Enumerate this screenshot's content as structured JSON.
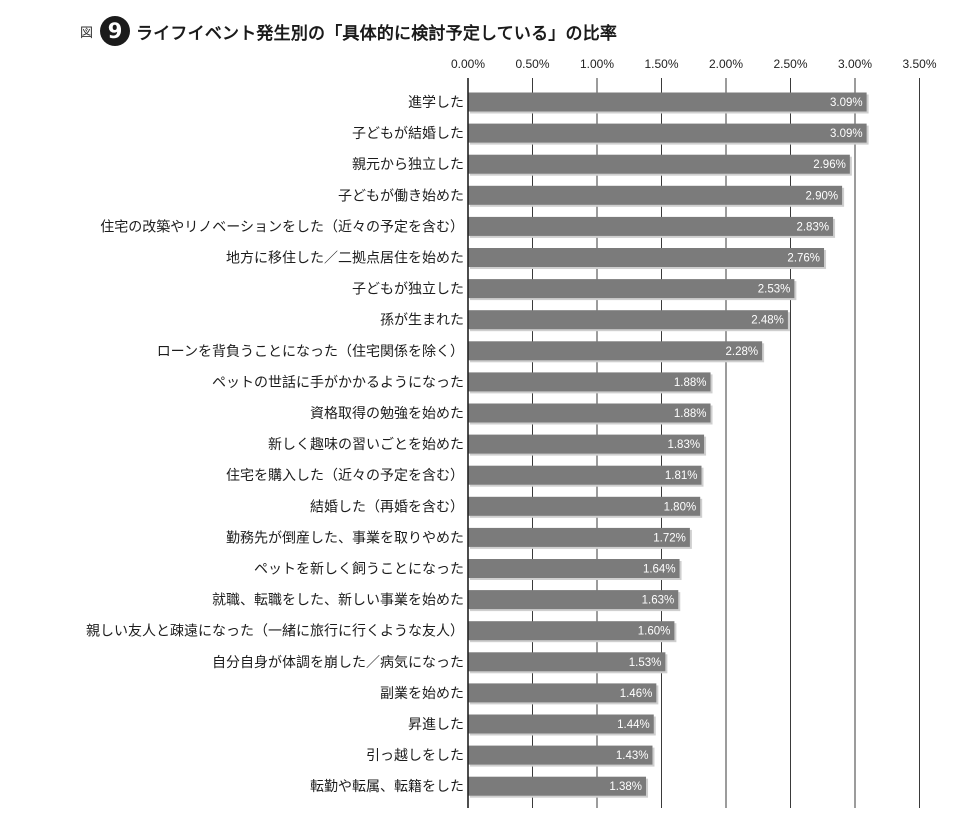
{
  "figure": {
    "prefix": "図",
    "number": "9",
    "title": "ライフイベント発生別の「具体的に検討予定している」の比率"
  },
  "colors": {
    "bar": "#7b7b7b",
    "bar_shadow": "#cfcfcf",
    "axis": "#222222",
    "grid": "#3a3a3a"
  },
  "chart_data": {
    "type": "bar",
    "orientation": "horizontal",
    "title": "ライフイベント発生別の「具体的に検討予定している」の比率",
    "xlabel": "",
    "ylabel": "",
    "xlim": [
      0,
      3.5
    ],
    "grid": true,
    "ticks": [
      "0.00%",
      "0.50%",
      "1.00%",
      "1.50%",
      "2.00%",
      "2.50%",
      "3.00%",
      "3.50%"
    ],
    "tick_values": [
      0,
      0.5,
      1.0,
      1.5,
      2.0,
      2.5,
      3.0,
      3.5
    ],
    "categories": [
      "進学した",
      "子どもが結婚した",
      "親元から独立した",
      "子どもが働き始めた",
      "住宅の改築やリノベーションをした（近々の予定を含む）",
      "地方に移住した／二拠点居住を始めた",
      "子どもが独立した",
      "孫が生まれた",
      "ローンを背負うことになった（住宅関係を除く）",
      "ペットの世話に手がかかるようになった",
      "資格取得の勉強を始めた",
      "新しく趣味の習いごとを始めた",
      "住宅を購入した（近々の予定を含む）",
      "結婚した（再婚を含む）",
      "勤務先が倒産した、事業を取りやめた",
      "ペットを新しく飼うことになった",
      "就職、転職をした、新しい事業を始めた",
      "親しい友人と疎遠になった（一緒に旅行に行くような友人）",
      "自分自身が体調を崩した／病気になった",
      "副業を始めた",
      "昇進した",
      "引っ越しをした",
      "転勤や転属、転籍をした"
    ],
    "values": [
      3.09,
      3.09,
      2.96,
      2.9,
      2.83,
      2.76,
      2.53,
      2.48,
      2.28,
      1.88,
      1.88,
      1.83,
      1.81,
      1.8,
      1.72,
      1.64,
      1.63,
      1.6,
      1.53,
      1.46,
      1.44,
      1.43,
      1.38
    ],
    "value_labels": [
      "3.09%",
      "3.09%",
      "2.96%",
      "2.90%",
      "2.83%",
      "2.76%",
      "2.53%",
      "2.48%",
      "2.28%",
      "1.88%",
      "1.88%",
      "1.83%",
      "1.81%",
      "1.80%",
      "1.72%",
      "1.64%",
      "1.63%",
      "1.60%",
      "1.53%",
      "1.46%",
      "1.44%",
      "1.43%",
      "1.38%"
    ]
  }
}
